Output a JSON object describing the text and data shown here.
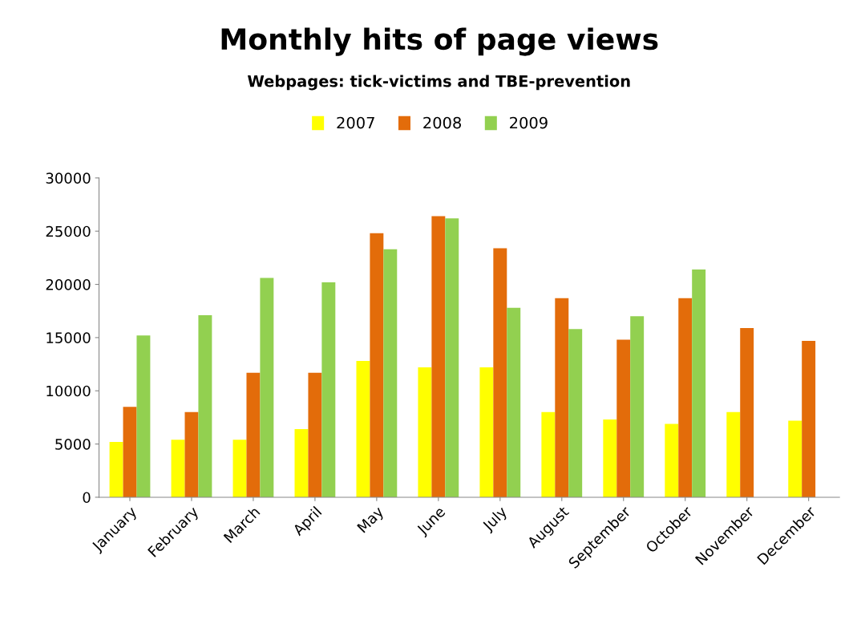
{
  "chart_data": {
    "type": "bar",
    "title": "Monthly hits of page views",
    "subtitle": "Webpages: tick-victims and TBE-prevention",
    "categories": [
      "January",
      "February",
      "March",
      "April",
      "May",
      "June",
      "July",
      "August",
      "September",
      "October",
      "November",
      "December"
    ],
    "series": [
      {
        "name": "2007",
        "color": "#ffff00",
        "values": [
          5200,
          5400,
          5400,
          6400,
          12800,
          12200,
          12200,
          8000,
          7300,
          6900,
          8000,
          7200
        ]
      },
      {
        "name": "2008",
        "color": "#e36c0a",
        "values": [
          8500,
          8000,
          11700,
          11700,
          24800,
          26400,
          23400,
          18700,
          14800,
          18700,
          15900,
          14700
        ]
      },
      {
        "name": "2009",
        "color": "#92d050",
        "values": [
          15200,
          17100,
          20600,
          20200,
          23300,
          26200,
          17800,
          15800,
          17000,
          21400,
          null,
          null
        ]
      }
    ],
    "ylim": [
      0,
      30000
    ],
    "yticks": [
      0,
      5000,
      10000,
      15000,
      20000,
      25000,
      30000
    ],
    "grid": false,
    "legend": "top"
  }
}
